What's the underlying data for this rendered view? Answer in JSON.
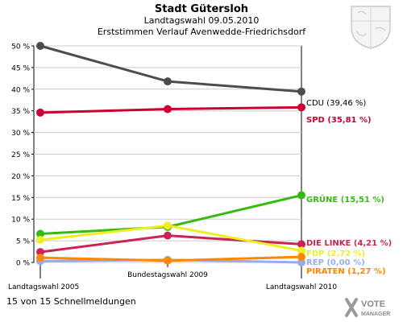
{
  "header": {
    "title": "Stadt Gütersloh",
    "subtitle": "Landtagswahl 09.05.2010",
    "subtitle2": "Erststimmen Verlauf Avenwedde-Friedrichsdorf"
  },
  "footer": {
    "status": "15 von 15 Schnellmeldungen",
    "logo_line1": "VOTE",
    "logo_line2": "MANAGER"
  },
  "colors": {
    "CDU": "#4d4d4d",
    "SPD": "#cc0033",
    "GRÜNE": "#33bb11",
    "DIE LINKE": "#cc2255",
    "FDP": "#eeee22",
    "REP": "#99aaee",
    "PIRATEN": "#ff8800",
    "axis_bg": "#ffffff",
    "grid": "#cccccc"
  },
  "chart_data": {
    "type": "line",
    "x": [
      "Landtagswahl 2005",
      "Bundestagswahl 2009",
      "Landtagswahl 2010"
    ],
    "ylim": [
      0,
      50
    ],
    "yticks": [
      "0 %",
      "5 %",
      "10 %",
      "15 %",
      "20 %",
      "25 %",
      "30 %",
      "35 %",
      "40 %",
      "45 %",
      "50 %"
    ],
    "grid": true,
    "series": [
      {
        "name": "CDU",
        "values": [
          50.0,
          41.8,
          39.46
        ],
        "label": "CDU (39,46 %)"
      },
      {
        "name": "SPD",
        "values": [
          34.6,
          35.4,
          35.81
        ],
        "label": "SPD (35,81 %)"
      },
      {
        "name": "GRÜNE",
        "values": [
          6.6,
          8.2,
          15.51
        ],
        "label": "GRÜNE (15,51 %)"
      },
      {
        "name": "DIE LINKE",
        "values": [
          2.4,
          6.2,
          4.21
        ],
        "label": "DIE LINKE (4,21 %)"
      },
      {
        "name": "FDP",
        "values": [
          5.2,
          8.5,
          2.72
        ],
        "label": "FDP (2,72 %)"
      },
      {
        "name": "REP",
        "values": [
          0.3,
          0.6,
          0.0
        ],
        "label": "REP (0,00 %)"
      },
      {
        "name": "PIRATEN",
        "values": [
          1.1,
          0.4,
          1.27
        ],
        "label": "PIRATEN (1,27 %)"
      }
    ]
  }
}
